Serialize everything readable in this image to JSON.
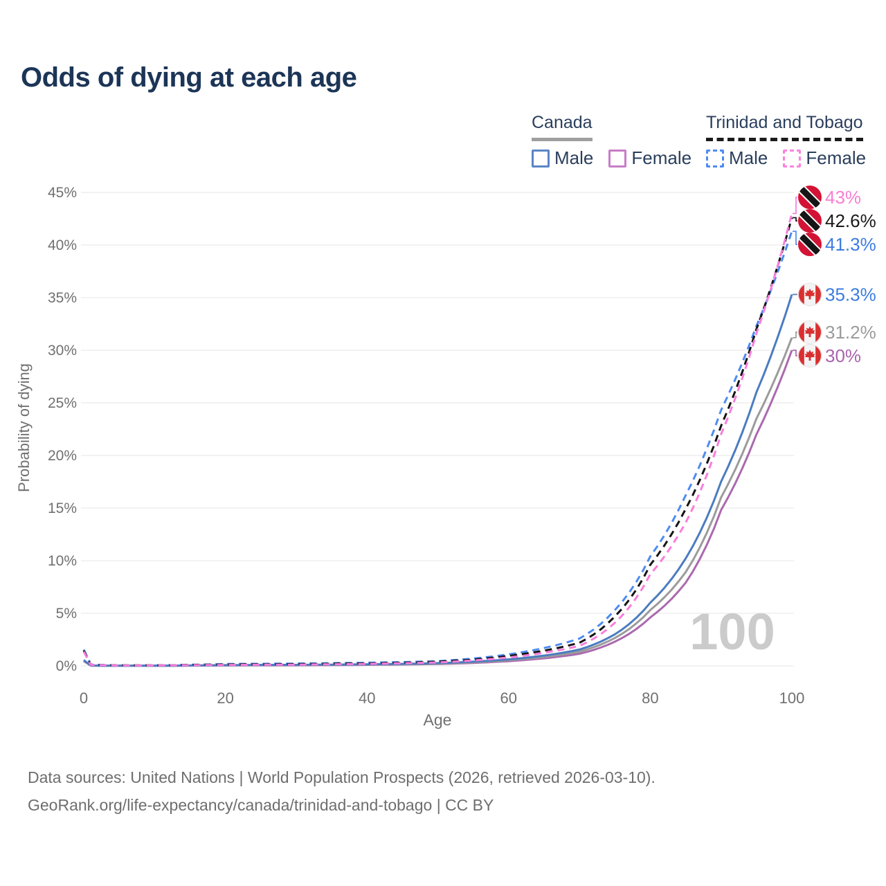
{
  "title": "Odds of dying at each age",
  "legend": {
    "groups": [
      {
        "label": "Canada",
        "line_style": "solid",
        "underline_color": "#9f9f9f",
        "items": [
          {
            "label": "Male",
            "color": "#5b85c5"
          },
          {
            "label": "Female",
            "color": "#c77dc6"
          }
        ]
      },
      {
        "label": "Trinidad and Tobago",
        "line_style": "dashed",
        "underline_color": "#1b1b1b",
        "items": [
          {
            "label": "Male",
            "color": "#4e8bf0"
          },
          {
            "label": "Female",
            "color": "#fb82de"
          }
        ]
      }
    ]
  },
  "chart_data": {
    "type": "line",
    "title": "Odds of dying at each age",
    "xlabel": "Age",
    "ylabel": "Probability of dying",
    "xlim": [
      0,
      100
    ],
    "ylim": [
      0,
      45
    ],
    "x_ticks": [
      0,
      20,
      40,
      60,
      80,
      100
    ],
    "y_ticks": [
      0,
      5,
      10,
      15,
      20,
      25,
      30,
      35,
      40,
      45
    ],
    "y_tick_suffix": "%",
    "grid": "horizontal",
    "watermark": "100",
    "x": [
      0,
      1,
      5,
      10,
      15,
      20,
      25,
      30,
      35,
      40,
      45,
      50,
      55,
      60,
      65,
      70,
      75,
      80,
      85,
      90,
      95,
      100
    ],
    "series": [
      {
        "name": "Canada Female",
        "key": "canada-female",
        "country": "Canada",
        "sex": "Female",
        "color": "#ab69ae",
        "label_color": "#a964ad",
        "dash": false,
        "flag": "ca",
        "end_label": "30%",
        "values": [
          0.45,
          0.028,
          0.01,
          0.01,
          0.025,
          0.035,
          0.05,
          0.055,
          0.07,
          0.1,
          0.13,
          0.18,
          0.28,
          0.45,
          0.72,
          1.15,
          2.3,
          4.6,
          7.9,
          14.8,
          22.0,
          30.0
        ]
      },
      {
        "name": "Canada Both sexes",
        "key": "canada-total",
        "country": "Canada",
        "sex": "Both",
        "color": "#9b9b9b",
        "label_color": "#9b9b9b",
        "dash": false,
        "flag": "ca",
        "end_label": "31.2%",
        "values": [
          0.5,
          0.03,
          0.011,
          0.011,
          0.03,
          0.055,
          0.07,
          0.08,
          0.1,
          0.125,
          0.16,
          0.22,
          0.34,
          0.54,
          0.85,
          1.35,
          2.65,
          5.3,
          8.9,
          16.0,
          23.5,
          31.2
        ]
      },
      {
        "name": "Canada Male",
        "key": "canada-male",
        "country": "Canada",
        "sex": "Male",
        "color": "#4b7cc0",
        "label_color": "#3c7ce0",
        "dash": false,
        "flag": "ca",
        "end_label": "35.3%",
        "values": [
          0.55,
          0.035,
          0.012,
          0.012,
          0.04,
          0.07,
          0.09,
          0.1,
          0.12,
          0.15,
          0.19,
          0.26,
          0.4,
          0.62,
          0.98,
          1.55,
          3.0,
          6.0,
          10.2,
          17.5,
          26.0,
          35.3
        ]
      },
      {
        "name": "Trinidad and Tobago Male",
        "key": "tt-male",
        "country": "Trinidad and Tobago",
        "sex": "Male",
        "color": "#4e8bf0",
        "label_color": "#3c7ce0",
        "dash": true,
        "flag": "tt",
        "end_label": "41.3%",
        "values": [
          1.55,
          0.12,
          0.05,
          0.05,
          0.11,
          0.18,
          0.2,
          0.22,
          0.26,
          0.3,
          0.36,
          0.45,
          0.7,
          1.1,
          1.7,
          2.6,
          5.3,
          10.4,
          16.2,
          24.3,
          32.3,
          41.3
        ]
      },
      {
        "name": "Trinidad and Tobago Both sexes",
        "key": "tt-total",
        "country": "Trinidad and Tobago",
        "sex": "Both",
        "color": "#141414",
        "label_color": "#1a1a1a",
        "dash": true,
        "flag": "tt",
        "end_label": "42.6%",
        "values": [
          1.45,
          0.11,
          0.045,
          0.045,
          0.09,
          0.13,
          0.15,
          0.17,
          0.2,
          0.24,
          0.3,
          0.4,
          0.6,
          0.95,
          1.45,
          2.2,
          4.7,
          9.6,
          14.9,
          22.8,
          32.0,
          42.6
        ]
      },
      {
        "name": "Trinidad and Tobago Female",
        "key": "tt-female",
        "country": "Trinidad and Tobago",
        "sex": "Female",
        "color": "#f97ddb",
        "label_color": "#f97dd3",
        "dash": true,
        "flag": "tt",
        "end_label": "43%",
        "values": [
          1.35,
          0.1,
          0.04,
          0.04,
          0.07,
          0.09,
          0.11,
          0.12,
          0.15,
          0.19,
          0.25,
          0.33,
          0.52,
          0.8,
          1.25,
          1.9,
          4.1,
          8.7,
          13.6,
          22.0,
          31.6,
          43.0
        ]
      }
    ]
  },
  "footer": {
    "line1": "Data sources: United Nations | World Population Prospects (2026, retrieved 2026-03-10).",
    "line2": "GeoRank.org/life-expectancy/canada/trinidad-and-tobago | CC BY"
  }
}
